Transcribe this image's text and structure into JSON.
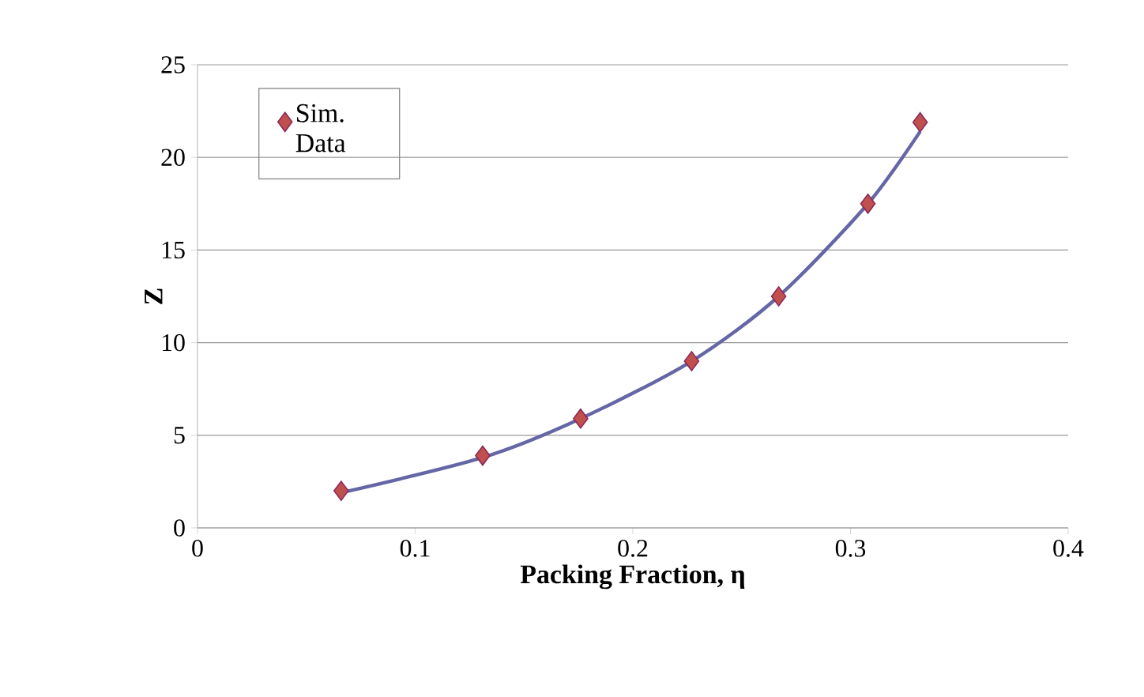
{
  "chart_data": {
    "type": "scatter",
    "xlabel": "Packing Fraction, η",
    "ylabel": "Z",
    "xlim": [
      0,
      0.4
    ],
    "xticks": [
      0,
      0.1,
      0.2,
      0.3,
      0.4
    ],
    "ylim": [
      0,
      25
    ],
    "yticks": [
      0,
      5,
      10,
      15,
      20,
      25
    ],
    "grid": "y",
    "legend": "top left",
    "series": [
      {
        "name": "Sim. Data",
        "marker": "diamond",
        "color": "#c0504d",
        "x": [
          0.066,
          0.131,
          0.176,
          0.227,
          0.267,
          0.308,
          0.332
        ],
        "values": [
          2.0,
          3.9,
          5.9,
          9.0,
          12.5,
          17.5,
          21.9
        ]
      },
      {
        "type": "line",
        "color": "#6566a6",
        "x": [
          0.066,
          0.131,
          0.176,
          0.227,
          0.267,
          0.308,
          0.332
        ],
        "values": [
          1.9,
          3.8,
          5.9,
          9.0,
          12.5,
          17.5,
          21.4
        ]
      }
    ]
  }
}
